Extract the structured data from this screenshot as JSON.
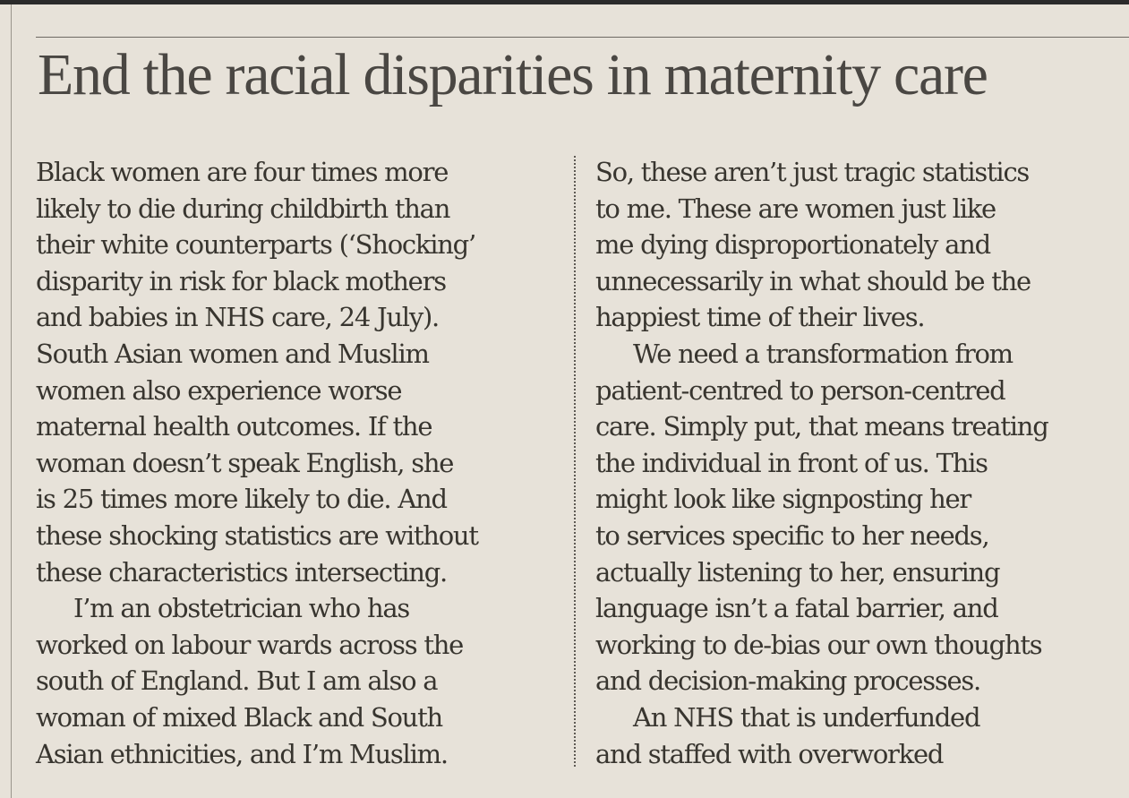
{
  "article": {
    "headline": "End the racial disparities in maternity care",
    "left_column": [
      {
        "text": "Black women are four times more",
        "indent": false
      },
      {
        "text": "likely to die during childbirth than",
        "indent": false
      },
      {
        "text": "their white counterparts (‘Shocking’",
        "indent": false
      },
      {
        "text": "disparity in risk for black mothers",
        "indent": false
      },
      {
        "text": "and babies in NHS care, 24 July).",
        "indent": false
      },
      {
        "text": "South Asian women and Muslim",
        "indent": false
      },
      {
        "text": "women also experience worse",
        "indent": false
      },
      {
        "text": "maternal health outcomes. If the",
        "indent": false
      },
      {
        "text": "woman doesn’t speak English, she",
        "indent": false
      },
      {
        "text": "is 25 times more likely to die. And",
        "indent": false
      },
      {
        "text": "these shocking statistics are without",
        "indent": false
      },
      {
        "text": "these characteristics intersecting.",
        "indent": false
      },
      {
        "text": "I’m an obstetrician who has",
        "indent": true
      },
      {
        "text": "worked on labour wards across the",
        "indent": false
      },
      {
        "text": "south of England. But I am also a",
        "indent": false
      },
      {
        "text": "woman of mixed Black and South",
        "indent": false
      },
      {
        "text": "Asian ethnicities, and I’m Muslim.",
        "indent": false
      }
    ],
    "right_column": [
      {
        "text": "So, these aren’t just tragic statistics",
        "indent": false
      },
      {
        "text": "to me. These are women just like",
        "indent": false
      },
      {
        "text": "me dying disproportionately and",
        "indent": false
      },
      {
        "text": "unnecessarily in what should be the",
        "indent": false
      },
      {
        "text": "happiest time of their lives.",
        "indent": false
      },
      {
        "text": "We need a transformation from",
        "indent": true
      },
      {
        "text": "patient-centred to person-centred",
        "indent": false
      },
      {
        "text": "care. Simply put, that means treating",
        "indent": false
      },
      {
        "text": "the individual in front of us. This",
        "indent": false
      },
      {
        "text": "might look like signposting her",
        "indent": false
      },
      {
        "text": "to services specific to her needs,",
        "indent": false
      },
      {
        "text": "actually listening to her, ensuring",
        "indent": false
      },
      {
        "text": "language isn’t a fatal barrier, and",
        "indent": false
      },
      {
        "text": "working to de-bias our own thoughts",
        "indent": false
      },
      {
        "text": "and decision-making processes.",
        "indent": false
      },
      {
        "text": "An NHS that is underfunded",
        "indent": true
      },
      {
        "text": "and staffed with overworked",
        "indent": false
      }
    ]
  }
}
